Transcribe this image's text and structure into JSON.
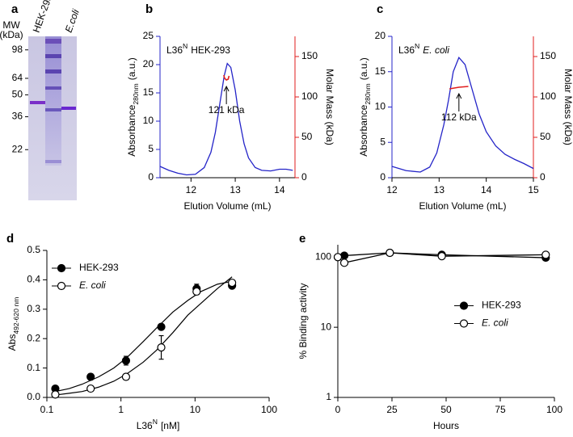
{
  "chart_data": [
    {
      "panel": "a",
      "type": "gel",
      "ylabel": [
        "MW",
        "(kDa)"
      ],
      "lanes": [
        "HEK-293",
        "E.coli"
      ],
      "lane_italic": [
        false,
        true
      ],
      "yscale": "log",
      "ylim": [
        10.3,
        120
      ],
      "yticks": [
        98,
        64,
        50,
        36,
        22
      ]
    },
    {
      "panel": "b",
      "type": "line",
      "inset_label": [
        "L36",
        "N",
        "HEK-293"
      ],
      "xlabel": "Elution Volume (mL)",
      "ylabel": [
        "Absorbance",
        "280nm",
        "(a.u.)"
      ],
      "y2label": "Molar Mass (kDa)",
      "y_color": "#2424c8",
      "y2_color": "#e01e1e",
      "xlim": [
        11.3,
        14.35
      ],
      "xticks": [
        12,
        13,
        14
      ],
      "ylim": [
        0,
        25
      ],
      "yticks": [
        0,
        5,
        10,
        15,
        20,
        25
      ],
      "y2lim": [
        0,
        175
      ],
      "y2ticks": [
        0,
        50,
        100,
        150
      ],
      "annotation": "121 kDa",
      "series": [
        {
          "color": "#2424c8",
          "x": [
            11.3,
            11.5,
            11.7,
            11.9,
            12.1,
            12.3,
            12.45,
            12.55,
            12.65,
            12.75,
            12.82,
            12.9,
            13.0,
            13.1,
            13.2,
            13.3,
            13.45,
            13.6,
            13.8,
            14.0,
            14.15,
            14.3
          ],
          "values": [
            2.0,
            1.3,
            0.8,
            0.5,
            0.6,
            1.8,
            4.5,
            8,
            13,
            18,
            20.2,
            19.5,
            15.5,
            10,
            6,
            3.5,
            1.8,
            1.3,
            1.2,
            1.5,
            1.5,
            1.3
          ]
        },
        {
          "color": "#e01e1e",
          "axis": "y2",
          "x": [
            12.74,
            12.76,
            12.8,
            12.84,
            12.86
          ],
          "values": [
            127,
            123,
            121,
            122,
            126
          ]
        }
      ]
    },
    {
      "panel": "c",
      "type": "line",
      "inset_label": [
        "L36",
        "N",
        "E. coli"
      ],
      "xlabel": "Elution Volume (mL)",
      "ylabel": [
        "Absorbance",
        "280nm",
        "(a.u.)"
      ],
      "y2label": "Molar Mass (kDa)",
      "y_color": "#2424c8",
      "y2_color": "#e01e1e",
      "xlim": [
        12,
        15
      ],
      "xticks": [
        12,
        13,
        14,
        15
      ],
      "ylim": [
        0,
        20
      ],
      "yticks": [
        0,
        5,
        10,
        15,
        20
      ],
      "y2lim": [
        0,
        175
      ],
      "y2ticks": [
        0,
        50,
        100,
        150
      ],
      "annotation": "112 kDa",
      "series": [
        {
          "color": "#2424c8",
          "x": [
            12.0,
            12.3,
            12.6,
            12.8,
            12.95,
            13.1,
            13.2,
            13.3,
            13.42,
            13.55,
            13.7,
            13.85,
            14.0,
            14.2,
            14.4,
            14.6,
            14.8,
            15.0
          ],
          "values": [
            1.6,
            1.0,
            0.8,
            1.5,
            3.5,
            7.5,
            11,
            15,
            17,
            16,
            12.5,
            9,
            6.5,
            4.5,
            3.3,
            2.6,
            2.0,
            1.3
          ]
        },
        {
          "color": "#e01e1e",
          "axis": "y2",
          "x": [
            13.22,
            13.42,
            13.62
          ],
          "values": [
            110,
            112,
            113
          ]
        }
      ]
    },
    {
      "panel": "d",
      "type": "scatter",
      "xlabel": [
        "L36",
        "N",
        "[nM]"
      ],
      "ylabel": [
        "Abs",
        "492-620 nm"
      ],
      "xscale": "log",
      "xlim": [
        0.1,
        100
      ],
      "xticks": [
        0.1,
        1,
        10,
        100
      ],
      "ylim": [
        0,
        0.5
      ],
      "yticks": [
        {
          "value": 0,
          "label": "0.0"
        },
        0.1,
        0.2,
        0.3,
        0.4,
        0.5
      ],
      "legend": "upper left",
      "series": [
        {
          "name": "HEK-293",
          "marker": "filled",
          "italic": false,
          "x": [
            0.13,
            0.39,
            1.17,
            3.5,
            10.5,
            31.6
          ],
          "values": [
            0.03,
            0.07,
            0.125,
            0.24,
            0.37,
            0.38
          ],
          "errors": [
            0.005,
            0.01,
            0.015,
            0.005,
            0.015,
            0.005
          ]
        },
        {
          "name": "E. coli",
          "marker": "open",
          "italic": true,
          "x": [
            0.13,
            0.39,
            1.17,
            3.5,
            10.5,
            31.6
          ],
          "values": [
            0.01,
            0.03,
            0.07,
            0.17,
            0.36,
            0.39
          ],
          "errors": [
            0.003,
            0.005,
            0.01,
            0.04,
            0.01,
            0.005
          ]
        }
      ],
      "fits": [
        {
          "x": [
            0.13,
            0.2,
            0.3,
            0.5,
            0.8,
            1.2,
            2,
            3,
            5,
            8,
            12,
            20,
            31.6
          ],
          "values": [
            0.02,
            0.03,
            0.045,
            0.07,
            0.1,
            0.135,
            0.19,
            0.235,
            0.29,
            0.33,
            0.36,
            0.385,
            0.395
          ]
        },
        {
          "x": [
            0.13,
            0.2,
            0.3,
            0.5,
            0.8,
            1.2,
            2,
            3,
            5,
            8,
            12,
            20,
            31.6
          ],
          "values": [
            0.008,
            0.014,
            0.02,
            0.035,
            0.055,
            0.08,
            0.12,
            0.16,
            0.22,
            0.28,
            0.32,
            0.37,
            0.41
          ]
        }
      ]
    },
    {
      "panel": "e",
      "type": "line",
      "xlabel": "Hours",
      "ylabel": "% Binding activity",
      "xlim": [
        0,
        100
      ],
      "xticks": [
        0,
        25,
        50,
        75,
        100
      ],
      "yscale": "log",
      "ylim": [
        1,
        150
      ],
      "yticks": [
        1,
        10,
        100
      ],
      "legend": "center right",
      "series": [
        {
          "name": "HEK-293",
          "marker": "filled",
          "italic": false,
          "x": [
            0,
            3,
            24,
            48,
            96
          ],
          "values": [
            100,
            105,
            115,
            108,
            98
          ],
          "errors": [
            2,
            2,
            3,
            3,
            8
          ]
        },
        {
          "name": "E. coli",
          "marker": "open",
          "italic": true,
          "x": [
            0,
            3,
            24,
            48,
            96
          ],
          "values": [
            100,
            83,
            115,
            103,
            108
          ],
          "errors": [
            2,
            6,
            3,
            3,
            4
          ]
        }
      ]
    }
  ]
}
